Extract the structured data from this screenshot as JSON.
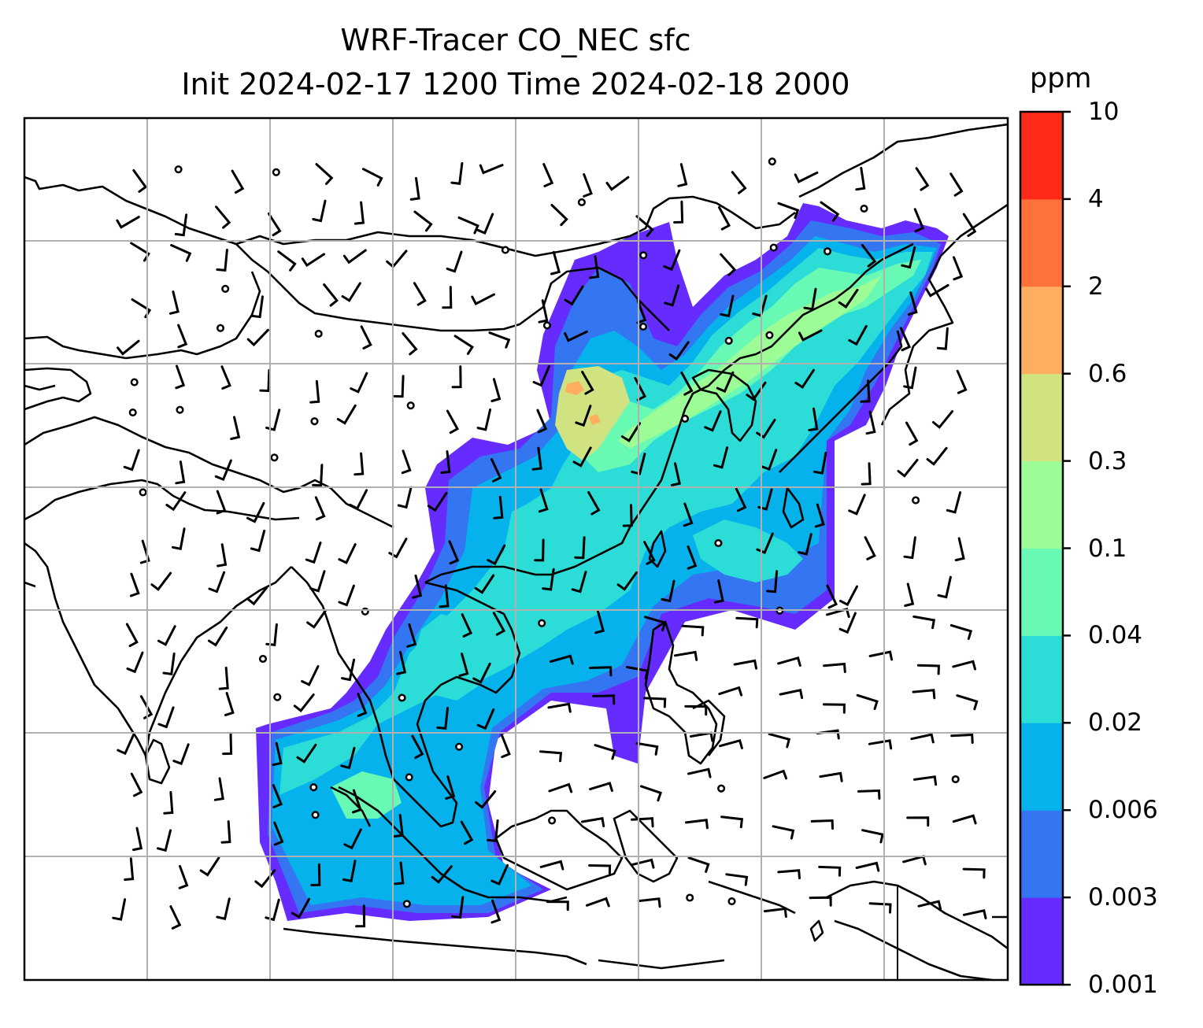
{
  "title_line1": "WRF-Tracer CO_NEC sfc",
  "title_line2": "Init 2024-02-17 1200 Time 2024-02-18 2000",
  "colorbar": {
    "unit": "ppm",
    "levels": [
      "0.001",
      "0.003",
      "0.006",
      "0.02",
      "0.04",
      "0.1",
      "0.3",
      "0.6",
      "2",
      "4",
      "10"
    ],
    "colors": [
      "#652bff",
      "#3475f2",
      "#05b2ec",
      "#2cdcd7",
      "#68f9b5",
      "#9cfd97",
      "#d1e381",
      "#ffad5e",
      "#ff713a",
      "#ff2a17"
    ]
  },
  "map": {
    "gridlines": true,
    "field": "CO_NEC surface tracer concentration",
    "wind_barbs": true
  }
}
